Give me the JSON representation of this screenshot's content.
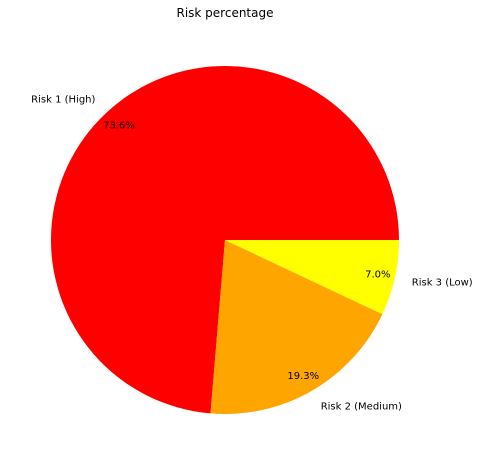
{
  "chart_data": {
    "type": "pie",
    "title": "Risk percentage",
    "categories": [
      "Risk 1 (High)",
      "Risk 2 (Medium)",
      "Risk 3 (Low)"
    ],
    "values": [
      73.6,
      19.3,
      7.0
    ],
    "percent_labels": [
      "73.6%",
      "19.3%",
      "7.0%"
    ],
    "colors": [
      "#ff0000",
      "#ffa500",
      "#ffff00"
    ],
    "start_angle_deg": 0,
    "direction": "counterclockwise",
    "legend": "none"
  }
}
